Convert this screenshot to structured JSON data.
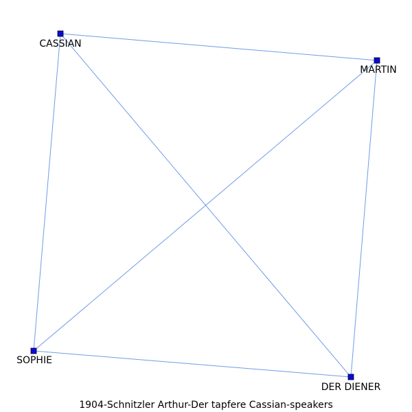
{
  "diagram": {
    "caption": "1904-Schnitzler Arthur-Der tapfere Cassian-speakers",
    "colors": {
      "node": "#0a0ad6",
      "edge": "#6f9be6",
      "text": "#000000"
    },
    "nodes": [
      {
        "id": "cassian",
        "label": "CASSIAN"
      },
      {
        "id": "martin",
        "label": "MARTIN"
      },
      {
        "id": "sophie",
        "label": "SOPHIE"
      },
      {
        "id": "der_diener",
        "label": "DER DIENER"
      }
    ],
    "edges": [
      {
        "source": "cassian",
        "target": "martin"
      },
      {
        "source": "cassian",
        "target": "sophie"
      },
      {
        "source": "cassian",
        "target": "der_diener"
      },
      {
        "source": "martin",
        "target": "sophie"
      },
      {
        "source": "martin",
        "target": "der_diener"
      },
      {
        "source": "sophie",
        "target": "der_diener"
      }
    ]
  }
}
